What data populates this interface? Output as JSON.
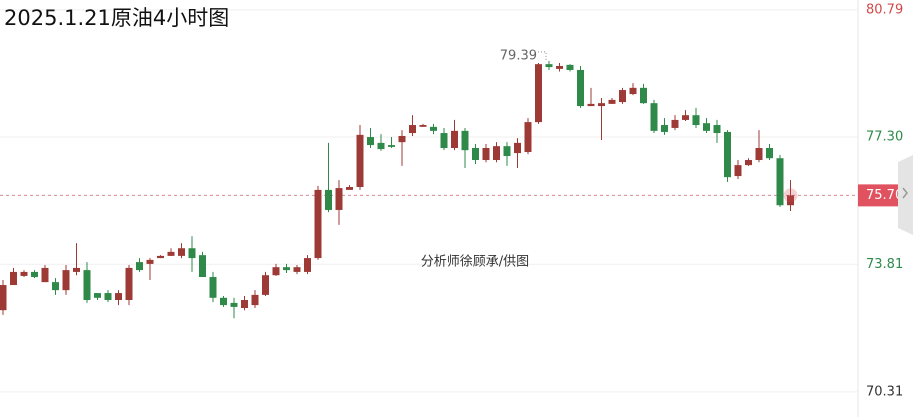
{
  "chart_data": {
    "type": "candlestick",
    "title": "2025.1.21原油4小时图",
    "watermark": "分析师徐顾承/供图",
    "up_color": "#9e3a36",
    "down_color": "#2f8a4a",
    "open": [
      72.55,
      73.24,
      73.49,
      73.6,
      73.32,
      73.32,
      73.1,
      73.6,
      73.65,
      73.02,
      73.02,
      72.83,
      72.83,
      73.87,
      73.82,
      73.98,
      74.04,
      74.04,
      74.25,
      74.06,
      73.46,
      72.89,
      72.75,
      72.61,
      72.69,
      72.97,
      73.51,
      73.73,
      73.6,
      73.6,
      73.98,
      75.85,
      75.3,
      75.85,
      75.93,
      77.3,
      77.14,
      77.08,
      77.16,
      77.41,
      77.58,
      77.58,
      77.41,
      77.0,
      77.47,
      77.0,
      76.67,
      76.67,
      77.05,
      76.86,
      76.89,
      77.71,
      79.3,
      79.17,
      79.28,
      79.14,
      78.15,
      78.15,
      78.21,
      78.26,
      78.48,
      78.65,
      78.23,
      77.63,
      77.55,
      77.77,
      77.9,
      77.68,
      77.63,
      77.44,
      76.23,
      76.53,
      76.67,
      77.0,
      76.72,
      75.43
    ],
    "high": [
      73.38,
      73.71,
      73.65,
      73.65,
      73.79,
      73.43,
      73.79,
      74.39,
      73.87,
      73.02,
      73.1,
      73.1,
      73.79,
      73.98,
      73.98,
      74.06,
      74.25,
      74.39,
      74.58,
      74.15,
      73.6,
      72.94,
      72.89,
      72.94,
      73.1,
      73.6,
      73.82,
      73.82,
      73.79,
      74.06,
      75.96,
      77.14,
      76.12,
      75.98,
      77.63,
      77.55,
      77.38,
      77.3,
      77.49,
      77.9,
      77.66,
      77.66,
      77.55,
      77.77,
      77.55,
      77.11,
      77.11,
      77.16,
      77.16,
      77.27,
      77.82,
      79.33,
      79.39,
      79.33,
      79.3,
      79.25,
      78.65,
      78.37,
      78.37,
      78.65,
      78.78,
      78.76,
      78.32,
      77.82,
      77.9,
      78.04,
      78.1,
      77.82,
      77.77,
      77.49,
      76.67,
      76.72,
      77.49,
      77.11,
      76.81,
      76.12
    ],
    "low": [
      72.42,
      73.24,
      73.46,
      73.43,
      73.32,
      72.97,
      72.97,
      73.51,
      72.75,
      72.83,
      72.77,
      72.69,
      72.69,
      73.6,
      73.38,
      73.98,
      74.04,
      73.98,
      73.6,
      73.46,
      72.77,
      72.64,
      72.33,
      72.55,
      72.61,
      72.94,
      73.49,
      73.57,
      73.54,
      73.54,
      73.93,
      75.24,
      74.89,
      75.85,
      75.85,
      77.0,
      76.92,
      77.0,
      76.51,
      77.33,
      77.58,
      77.38,
      76.94,
      76.94,
      76.45,
      76.56,
      76.61,
      76.61,
      76.51,
      76.45,
      76.83,
      77.66,
      79.14,
      79.1,
      79.1,
      78.1,
      78.15,
      77.22,
      78.21,
      78.21,
      78.45,
      78.21,
      77.41,
      77.36,
      77.49,
      77.74,
      77.55,
      77.41,
      77.14,
      76.07,
      76.15,
      76.51,
      76.61,
      76.67,
      75.38,
      75.27
    ],
    "close": [
      73.24,
      73.6,
      73.6,
      73.46,
      73.71,
      73.1,
      73.65,
      73.71,
      72.83,
      72.89,
      72.83,
      73.02,
      73.71,
      73.65,
      73.93,
      74.04,
      74.15,
      74.25,
      73.98,
      73.46,
      72.89,
      72.69,
      72.64,
      72.83,
      72.97,
      73.51,
      73.73,
      73.65,
      73.73,
      73.98,
      75.85,
      75.3,
      75.9,
      75.93,
      77.36,
      77.08,
      76.97,
      77.03,
      77.33,
      77.63,
      77.63,
      77.47,
      77.0,
      77.47,
      76.94,
      76.67,
      77.0,
      77.05,
      76.78,
      77.14,
      77.71,
      79.3,
      79.22,
      79.25,
      79.14,
      78.15,
      78.21,
      78.23,
      78.32,
      78.59,
      78.65,
      78.23,
      77.47,
      77.44,
      77.77,
      77.9,
      77.63,
      77.47,
      77.41,
      76.2,
      76.53,
      76.67,
      77.0,
      76.72,
      75.43,
      75.7
    ],
    "last_price": {
      "value": 75.7,
      "label": "75.70"
    },
    "ylim": [
      69.62,
      81.06
    ],
    "yticks": [
      80.79,
      {
        "value": 77.3,
        "label": "77.30"
      },
      73.81,
      70.31
    ],
    "ytick_colors": [
      "#d04a4a",
      "#2f8a4a",
      "#2f8a4a",
      "#333333"
    ],
    "grid": true
  }
}
